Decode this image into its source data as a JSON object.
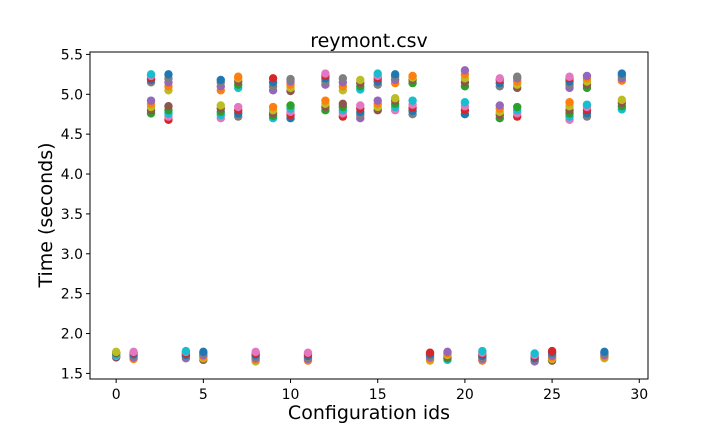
{
  "chart_data": {
    "type": "scatter",
    "title": "reymont.csv",
    "xlabel": "Configuration ids",
    "ylabel": "Time (seconds)",
    "xlim": [
      -1.5,
      30.5
    ],
    "ylim": [
      1.43,
      5.53
    ],
    "xticks": [
      "0",
      "5",
      "10",
      "15",
      "20",
      "25",
      "30"
    ],
    "yticks": [
      "1.5",
      "2.0",
      "2.5",
      "3.0",
      "3.5",
      "4.0",
      "4.5",
      "5.0",
      "5.5"
    ],
    "grid": false,
    "legend": "none",
    "palette": [
      "#1f77b4",
      "#ff7f0e",
      "#2ca02c",
      "#d62728",
      "#9467bd",
      "#8c564b",
      "#e377c2",
      "#7f7f7f",
      "#bcbd22",
      "#17becf"
    ],
    "groups": [
      {
        "x": 0,
        "values": [
          1.7,
          1.71,
          1.72,
          1.73,
          1.75,
          1.76,
          1.77
        ]
      },
      {
        "x": 1,
        "values": [
          1.68,
          1.7,
          1.72,
          1.74,
          1.76,
          1.77
        ]
      },
      {
        "x": 2,
        "values": [
          4.76,
          4.8,
          4.84,
          4.88,
          4.92,
          5.15,
          5.18,
          5.2,
          5.23,
          5.25
        ]
      },
      {
        "x": 3,
        "values": [
          4.68,
          4.72,
          4.76,
          4.8,
          4.85,
          5.05,
          5.1,
          5.15,
          5.2,
          5.25
        ]
      },
      {
        "x": 4,
        "values": [
          1.69,
          1.71,
          1.73,
          1.75,
          1.77,
          1.78
        ]
      },
      {
        "x": 5,
        "values": [
          1.67,
          1.69,
          1.71,
          1.73,
          1.75,
          1.77
        ]
      },
      {
        "x": 6,
        "values": [
          4.7,
          4.74,
          4.78,
          4.82,
          4.86,
          5.05,
          5.1,
          5.15,
          5.18
        ]
      },
      {
        "x": 7,
        "values": [
          4.72,
          4.76,
          4.8,
          4.84,
          5.08,
          5.12,
          5.16,
          5.2,
          5.22
        ]
      },
      {
        "x": 8,
        "values": [
          1.65,
          1.67,
          1.69,
          1.71,
          1.73,
          1.75,
          1.77
        ]
      },
      {
        "x": 9,
        "values": [
          4.7,
          4.73,
          4.76,
          4.8,
          4.84,
          5.05,
          5.1,
          5.15,
          5.2
        ]
      },
      {
        "x": 10,
        "values": [
          4.7,
          4.74,
          4.78,
          4.82,
          4.86,
          5.04,
          5.08,
          5.12,
          5.16,
          5.19
        ]
      },
      {
        "x": 11,
        "values": [
          1.66,
          1.68,
          1.7,
          1.72,
          1.74,
          1.76
        ]
      },
      {
        "x": 12,
        "values": [
          4.8,
          4.84,
          4.88,
          4.92,
          5.12,
          5.16,
          5.2,
          5.23,
          5.26
        ]
      },
      {
        "x": 13,
        "values": [
          4.72,
          4.76,
          4.8,
          4.84,
          4.88,
          5.05,
          5.1,
          5.15,
          5.2
        ]
      },
      {
        "x": 14,
        "values": [
          4.7,
          4.74,
          4.78,
          4.82,
          4.86,
          5.06,
          5.1,
          5.14,
          5.18
        ]
      },
      {
        "x": 15,
        "values": [
          4.8,
          4.84,
          4.88,
          4.92,
          5.12,
          5.16,
          5.2,
          5.23,
          5.26
        ]
      },
      {
        "x": 16,
        "values": [
          4.8,
          4.84,
          4.88,
          4.92,
          4.95,
          5.14,
          5.18,
          5.22,
          5.25
        ]
      },
      {
        "x": 17,
        "values": [
          4.75,
          4.79,
          4.83,
          4.87,
          4.92,
          5.14,
          5.18,
          5.21,
          5.23
        ]
      },
      {
        "x": 18,
        "values": [
          1.66,
          1.68,
          1.7,
          1.72,
          1.74,
          1.76
        ]
      },
      {
        "x": 19,
        "values": [
          1.67,
          1.69,
          1.71,
          1.73,
          1.75,
          1.77
        ]
      },
      {
        "x": 20,
        "values": [
          4.75,
          4.8,
          4.85,
          4.9,
          5.1,
          5.15,
          5.2,
          5.25,
          5.3
        ]
      },
      {
        "x": 21,
        "values": [
          1.66,
          1.68,
          1.7,
          1.72,
          1.74,
          1.76,
          1.78
        ]
      },
      {
        "x": 22,
        "values": [
          4.7,
          4.74,
          4.78,
          4.82,
          4.86,
          5.1,
          5.14,
          5.18,
          5.2
        ]
      },
      {
        "x": 23,
        "values": [
          4.72,
          4.76,
          4.8,
          4.84,
          5.08,
          5.12,
          5.16,
          5.2,
          5.22
        ]
      },
      {
        "x": 24,
        "values": [
          1.65,
          1.67,
          1.69,
          1.71,
          1.73,
          1.75
        ]
      },
      {
        "x": 25,
        "values": [
          1.66,
          1.68,
          1.7,
          1.72,
          1.74,
          1.76,
          1.78
        ]
      },
      {
        "x": 26,
        "values": [
          4.68,
          4.72,
          4.76,
          4.8,
          4.85,
          4.9,
          5.08,
          5.12,
          5.16,
          5.2,
          5.22
        ]
      },
      {
        "x": 27,
        "values": [
          4.72,
          4.76,
          4.8,
          4.84,
          4.87,
          5.08,
          5.12,
          5.16,
          5.2,
          5.23
        ]
      },
      {
        "x": 28,
        "values": [
          1.69,
          1.71,
          1.73,
          1.75,
          1.77
        ]
      },
      {
        "x": 29,
        "values": [
          4.81,
          4.85,
          4.89,
          4.93,
          5.17,
          5.2,
          5.23,
          5.26
        ]
      }
    ]
  }
}
